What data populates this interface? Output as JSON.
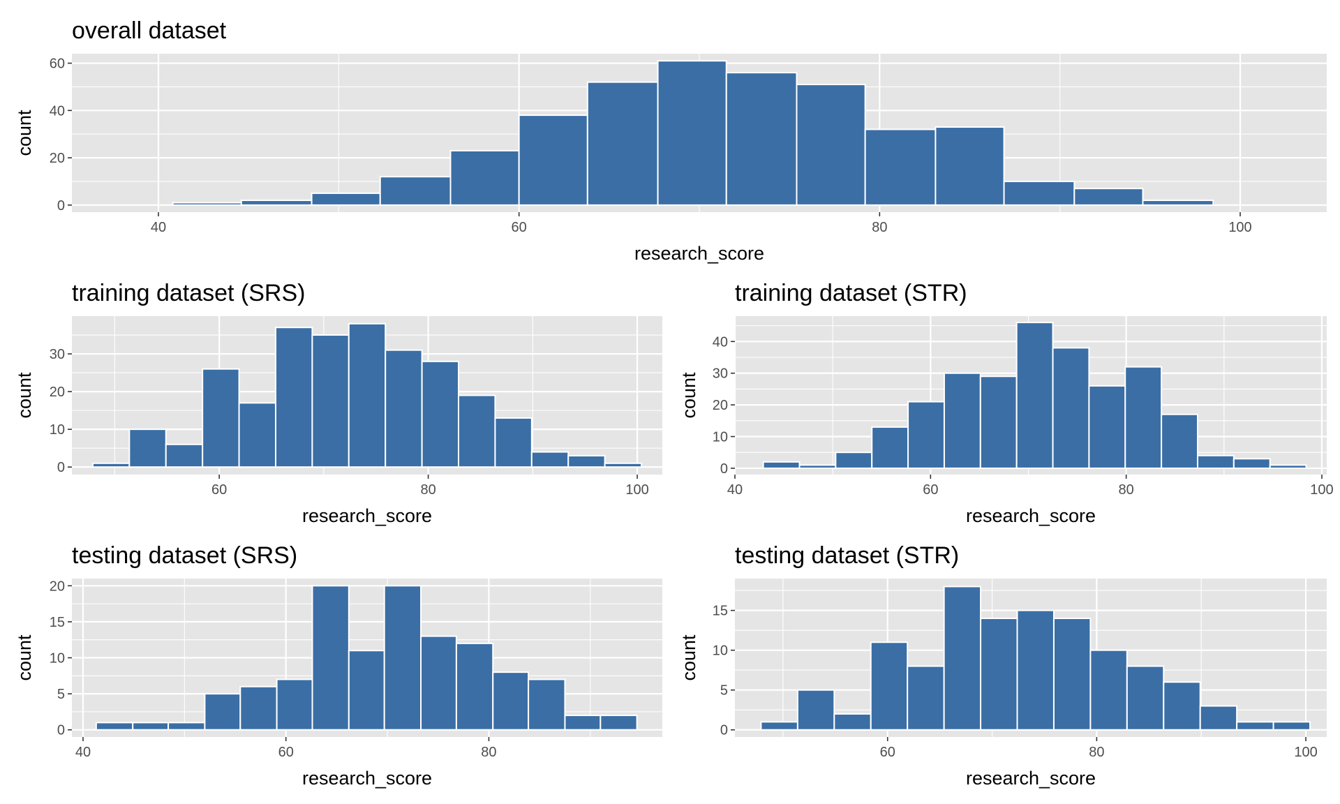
{
  "chart_data": [
    {
      "type": "bar",
      "title": "overall dataset",
      "xlabel": "research_score",
      "ylabel": "count",
      "xlim": [
        35.2,
        104.8
      ],
      "ylim": [
        -3,
        64
      ],
      "xticks": [
        40,
        60,
        80,
        100
      ],
      "yticks": [
        0,
        20,
        40,
        60
      ],
      "bin_edges": [
        40.8,
        44.6,
        48.5,
        52.3,
        56.2,
        60.0,
        63.8,
        67.7,
        71.5,
        75.4,
        79.2,
        83.1,
        86.9,
        90.8,
        94.6,
        98.5
      ],
      "values": [
        1,
        2,
        5,
        12,
        23,
        38,
        52,
        61,
        56,
        51,
        32,
        33,
        10,
        7,
        2
      ],
      "color": "#3a6ea5",
      "grid": true
    },
    {
      "type": "bar",
      "title": "training dataset (SRS)",
      "xlabel": "research_score",
      "ylabel": "count",
      "xlim": [
        45.9,
        102.4
      ],
      "ylim": [
        -2,
        40
      ],
      "xticks": [
        60,
        80,
        100
      ],
      "yticks": [
        0,
        10,
        20,
        30
      ],
      "bin_edges": [
        47.9,
        51.4,
        54.9,
        58.4,
        61.9,
        65.4,
        68.9,
        72.4,
        75.9,
        79.4,
        82.9,
        86.4,
        89.9,
        93.4,
        96.9,
        100.4
      ],
      "values": [
        1,
        10,
        6,
        26,
        17,
        37,
        35,
        38,
        31,
        28,
        19,
        13,
        4,
        3,
        1
      ],
      "color": "#3a6ea5",
      "grid": true
    },
    {
      "type": "bar",
      "title": "training dataset (STR)",
      "xlabel": "research_score",
      "ylabel": "count",
      "xlim": [
        40.0,
        100.5
      ],
      "ylim": [
        -2,
        48
      ],
      "xticks": [
        40,
        60,
        80,
        100
      ],
      "yticks": [
        0,
        10,
        20,
        30,
        40
      ],
      "bin_edges": [
        42.9,
        46.6,
        50.3,
        54.0,
        57.7,
        61.4,
        65.1,
        68.8,
        72.5,
        76.2,
        79.9,
        83.6,
        87.3,
        91.0,
        94.7,
        98.4
      ],
      "values": [
        2,
        1,
        5,
        13,
        21,
        30,
        29,
        46,
        38,
        26,
        32,
        17,
        4,
        3,
        1
      ],
      "color": "#3a6ea5",
      "grid": true
    },
    {
      "type": "bar",
      "title": "testing dataset (SRS)",
      "xlabel": "research_score",
      "ylabel": "count",
      "xlim": [
        38.9,
        97.1
      ],
      "ylim": [
        -1,
        21
      ],
      "xticks": [
        40,
        60,
        80
      ],
      "yticks": [
        0,
        5,
        10,
        15,
        20
      ],
      "bin_edges": [
        41.3,
        44.9,
        48.4,
        52.0,
        55.5,
        59.1,
        62.6,
        66.2,
        69.7,
        73.3,
        76.8,
        80.4,
        83.9,
        87.5,
        91.0,
        94.6
      ],
      "values": [
        1,
        1,
        1,
        5,
        6,
        7,
        20,
        11,
        20,
        13,
        12,
        8,
        7,
        2,
        2
      ],
      "color": "#3a6ea5",
      "grid": true
    },
    {
      "type": "bar",
      "title": "testing dataset (STR)",
      "xlabel": "research_score",
      "ylabel": "count",
      "xlim": [
        45.4,
        102.0
      ],
      "ylim": [
        -0.9,
        19
      ],
      "xticks": [
        60,
        80,
        100
      ],
      "yticks": [
        0,
        5,
        10,
        15
      ],
      "bin_edges": [
        47.9,
        51.4,
        54.9,
        58.4,
        61.9,
        65.4,
        68.9,
        72.4,
        75.9,
        79.4,
        82.9,
        86.4,
        89.9,
        93.4,
        96.9,
        100.4
      ],
      "values": [
        1,
        5,
        2,
        11,
        8,
        18,
        14,
        15,
        14,
        10,
        8,
        6,
        3,
        1,
        1
      ],
      "color": "#3a6ea5",
      "grid": true
    }
  ]
}
